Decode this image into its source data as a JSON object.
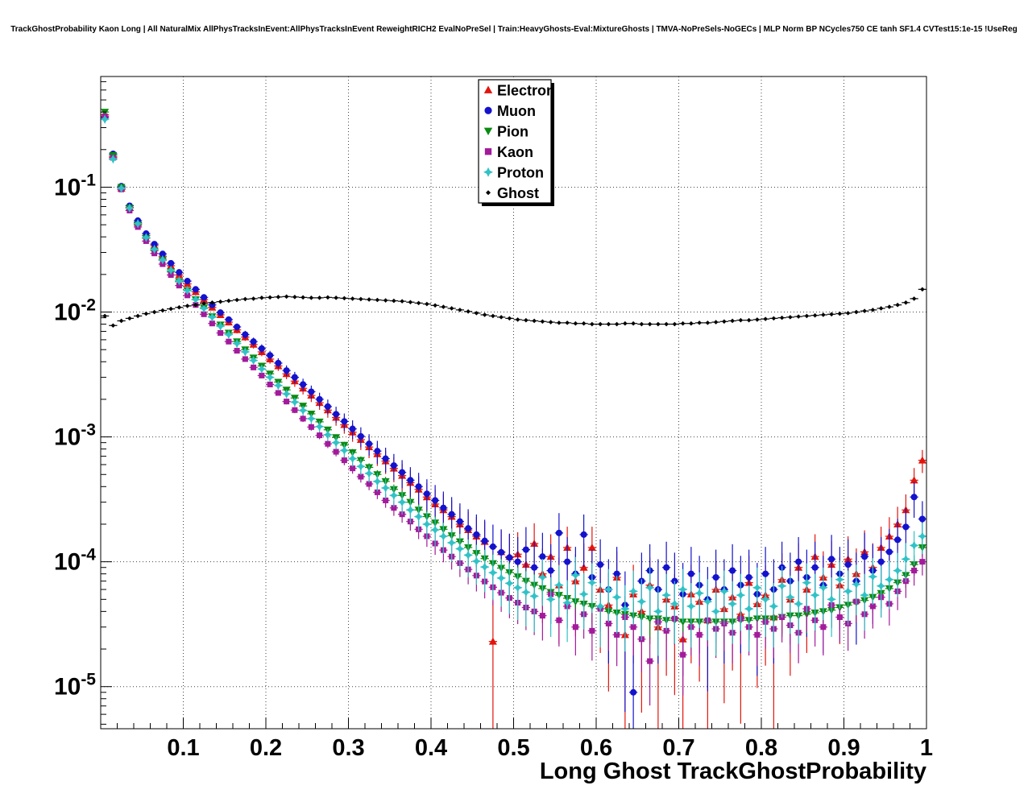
{
  "chart_data": {
    "type": "scatter",
    "title": "TrackGhostProbability Kaon Long | All NaturalMix AllPhysTracksInEvent:AllPhysTracksInEvent ReweightRICH2 EvalNoPreSel | Train:HeavyGhosts-Eval:MixtureGhosts | TMVA-NoPreSels-NoGECs | MLP Norm BP NCycles750 CE tanh SF1.4 CVTest15:1e-15 !UseReg",
    "xlabel": "Long Ghost TrackGhostProbability",
    "ylabel": "",
    "y_scale": "log",
    "grid": true,
    "x_range": [
      0,
      1
    ],
    "y_range": [
      4.6e-06,
      0.77
    ],
    "x_ticks": [
      0.1,
      0.2,
      0.3,
      0.4,
      0.5,
      0.6,
      0.7,
      0.8,
      0.9,
      1
    ],
    "x_tick_labels": [
      "0.1",
      "0.2",
      "0.3",
      "0.4",
      "0.5",
      "0.6",
      "0.7",
      "0.8",
      "0.9",
      "1"
    ],
    "y_tick_exponents": [
      -5,
      -4,
      -3,
      -2,
      -1
    ],
    "legend_position": "top-center",
    "bin_width": 0.01,
    "error_model": "poisson estimate: err = sqrt(y / stat_c)",
    "x": [
      0.005,
      0.015,
      0.025,
      0.035,
      0.045,
      0.055,
      0.065,
      0.075,
      0.085,
      0.095,
      0.105,
      0.115,
      0.125,
      0.135,
      0.145,
      0.155,
      0.165,
      0.175,
      0.185,
      0.195,
      0.205,
      0.215,
      0.225,
      0.235,
      0.245,
      0.255,
      0.265,
      0.275,
      0.285,
      0.295,
      0.305,
      0.315,
      0.325,
      0.335,
      0.345,
      0.355,
      0.365,
      0.375,
      0.385,
      0.395,
      0.405,
      0.415,
      0.425,
      0.435,
      0.445,
      0.455,
      0.465,
      0.475,
      0.485,
      0.495,
      0.505,
      0.515,
      0.525,
      0.535,
      0.545,
      0.555,
      0.565,
      0.575,
      0.585,
      0.595,
      0.605,
      0.615,
      0.625,
      0.635,
      0.645,
      0.655,
      0.665,
      0.675,
      0.685,
      0.695,
      0.705,
      0.715,
      0.725,
      0.735,
      0.745,
      0.755,
      0.765,
      0.775,
      0.785,
      0.795,
      0.805,
      0.815,
      0.825,
      0.835,
      0.845,
      0.855,
      0.865,
      0.875,
      0.885,
      0.895,
      0.905,
      0.915,
      0.925,
      0.935,
      0.945,
      0.955,
      0.965,
      0.975,
      0.985,
      0.995
    ],
    "series": [
      {
        "name": "Electron",
        "color": "#e3140c",
        "marker": "triangle-up",
        "marker_size": 5,
        "stat_c": 35000,
        "values": [
          0.38,
          0.175,
          0.098,
          0.069,
          0.052,
          0.041,
          0.034,
          0.028,
          0.0235,
          0.0198,
          0.0168,
          0.0145,
          0.0126,
          0.0109,
          0.0095,
          0.0083,
          0.0072,
          0.0063,
          0.0055,
          0.0048,
          0.0042,
          0.0037,
          0.0032,
          0.0028,
          0.00245,
          0.00215,
          0.00188,
          0.00164,
          0.00143,
          0.00125,
          0.00109,
          0.00095,
          0.00083,
          0.00073,
          0.00064,
          0.00056,
          0.00049,
          0.00043,
          0.00038,
          0.00033,
          0.00029,
          0.00026,
          0.00023,
          0.0002,
          0.00018,
          0.00016,
          0.000145,
          2.3e-05,
          0.00012,
          0.00011,
          0.000115,
          9.5e-05,
          0.00014,
          8e-05,
          0.00011,
          6.5e-05,
          0.00013,
          7e-05,
          9e-05,
          0.00013,
          6e-05,
          4.5e-05,
          7.5e-05,
          2.6e-05,
          5.5e-05,
          4e-05,
          6.5e-05,
          3e-05,
          5e-05,
          4.4e-05,
          2.4e-05,
          5.5e-05,
          4.8e-05,
          3.4e-05,
          6e-05,
          4.2e-05,
          5.2e-05,
          3.8e-05,
          6.8e-05,
          4.6e-05,
          5.4e-05,
          3.6e-05,
          7.2e-05,
          5e-05,
          9e-05,
          6e-05,
          0.00011,
          7.5e-05,
          9.5e-05,
          6.5e-05,
          0.000105,
          8e-05,
          0.00012,
          9e-05,
          0.00013,
          0.00016,
          0.0002,
          0.00026,
          0.00045,
          0.00065
        ]
      },
      {
        "name": "Muon",
        "color": "#1412cc",
        "marker": "circle",
        "marker_size": 4.6,
        "stat_c": 30000,
        "values": [
          0.36,
          0.185,
          0.102,
          0.071,
          0.054,
          0.0425,
          0.035,
          0.0292,
          0.0246,
          0.0208,
          0.0177,
          0.0152,
          0.0131,
          0.0114,
          0.0099,
          0.0087,
          0.0076,
          0.0066,
          0.0058,
          0.0051,
          0.0045,
          0.0039,
          0.0034,
          0.003,
          0.00263,
          0.0023,
          0.002,
          0.00175,
          0.00152,
          0.00133,
          0.00116,
          0.00101,
          0.00088,
          0.00077,
          0.00067,
          0.00059,
          0.00052,
          0.00045,
          0.0004,
          0.00035,
          0.00031,
          0.00027,
          0.00024,
          0.00021,
          0.000185,
          0.000165,
          0.000147,
          0.000132,
          0.000119,
          0.000108,
          0.0001,
          0.000125,
          9e-05,
          0.00011,
          8.5e-05,
          0.00017,
          0.0001,
          8e-05,
          0.000165,
          7.5e-05,
          9.5e-05,
          6e-05,
          8e-05,
          4.5e-05,
          9e-06,
          7e-05,
          8.5e-05,
          6e-05,
          9e-05,
          7e-05,
          5.5e-05,
          8e-05,
          6.5e-05,
          5e-05,
          7.5e-05,
          6e-05,
          8.5e-05,
          6.5e-05,
          7.5e-05,
          5.5e-05,
          8e-05,
          6e-05,
          9e-05,
          7e-05,
          0.0001,
          7.5e-05,
          9e-05,
          6.5e-05,
          0.000105,
          8e-05,
          9.5e-05,
          7e-05,
          0.00011,
          8.5e-05,
          0.0001,
          0.00012,
          0.00015,
          0.00019,
          0.00033,
          0.00022
        ]
      },
      {
        "name": "Pion",
        "color": "#0a8a10",
        "marker": "triangle-down",
        "marker_size": 5,
        "stat_c": 300000,
        "values": [
          0.4,
          0.18,
          0.1,
          0.068,
          0.05,
          0.039,
          0.031,
          0.026,
          0.021,
          0.0175,
          0.0148,
          0.0126,
          0.0108,
          0.0092,
          0.0079,
          0.0068,
          0.0058,
          0.005,
          0.0043,
          0.0037,
          0.0032,
          0.00275,
          0.00238,
          0.00205,
          0.00177,
          0.00153,
          0.00132,
          0.00114,
          0.00099,
          0.00086,
          0.00075,
          0.00065,
          0.00057,
          0.0005,
          0.00044,
          0.00038,
          0.00034,
          0.0003,
          0.00026,
          0.00023,
          0.000205,
          0.000182,
          0.000162,
          0.000145,
          0.00013,
          0.000117,
          0.000106,
          9.7e-05,
          8.9e-05,
          8.2e-05,
          7.6e-05,
          7e-05,
          6.5e-05,
          6.1e-05,
          5.7e-05,
          5.4e-05,
          5.1e-05,
          4.8e-05,
          4.6e-05,
          4.4e-05,
          4.2e-05,
          4e-05,
          3.9e-05,
          3.8e-05,
          3.7e-05,
          3.6e-05,
          3.5e-05,
          3.5e-05,
          3.4e-05,
          3.4e-05,
          3.3e-05,
          3.3e-05,
          3.3e-05,
          3.3e-05,
          3.3e-05,
          3.3e-05,
          3.3e-05,
          3.4e-05,
          3.4e-05,
          3.5e-05,
          3.5e-05,
          3.5e-05,
          3.6e-05,
          3.7e-05,
          3.7e-05,
          3.8e-05,
          3.9e-05,
          4e-05,
          4.1e-05,
          4.3e-05,
          4.5e-05,
          4.7e-05,
          4.9e-05,
          5.2e-05,
          5.6e-05,
          6.1e-05,
          6.8e-05,
          7.8e-05,
          9.5e-05,
          0.00013
        ]
      },
      {
        "name": "Kaon",
        "color": "#a31a9b",
        "marker": "square",
        "marker_size": 4.4,
        "stat_c": 200000,
        "values": [
          0.37,
          0.172,
          0.096,
          0.065,
          0.048,
          0.037,
          0.0295,
          0.0242,
          0.0198,
          0.0163,
          0.0136,
          0.0114,
          0.0096,
          0.0081,
          0.0068,
          0.0058,
          0.0049,
          0.0042,
          0.0036,
          0.0031,
          0.00263,
          0.00225,
          0.00192,
          0.00164,
          0.0014,
          0.0012,
          0.00103,
          0.00088,
          0.00076,
          0.00065,
          0.00056,
          0.00048,
          0.00042,
          0.00036,
          0.00031,
          0.00027,
          0.00024,
          0.00021,
          0.000182,
          0.00016,
          0.00014,
          0.000124,
          0.00011,
          9.75e-05,
          8.68e-05,
          7.75e-05,
          6.95e-05,
          6.25e-05,
          5.65e-05,
          5.13e-05,
          4.7e-05,
          4.3e-05,
          4e-05,
          3.7e-05,
          5.5e-05,
          3.4e-05,
          4.4e-05,
          3e-05,
          3.8e-05,
          2.8e-05,
          4.2e-05,
          3.2e-05,
          2.6e-05,
          3.6e-05,
          3e-05,
          2.4e-05,
          1.6e-05,
          3.3e-05,
          2.8e-05,
          3.5e-05,
          1.8e-05,
          3e-05,
          2.6e-05,
          3.4e-05,
          2.9e-05,
          3.2e-05,
          2.7e-05,
          3.5e-05,
          3e-05,
          2.6e-05,
          3.3e-05,
          2.9e-05,
          3.6e-05,
          3.1e-05,
          2.7e-05,
          4.2e-05,
          3.4e-05,
          3e-05,
          4.5e-05,
          3.6e-05,
          3.2e-05,
          4.8e-05,
          3.8e-05,
          4.4e-05,
          5.2e-05,
          4.6e-05,
          5.8e-05,
          7e-05,
          8.5e-05,
          0.0001
        ]
      },
      {
        "name": "Proton",
        "color": "#30c2c6",
        "marker": "star4",
        "marker_size": 5,
        "stat_c": 80000,
        "values": [
          0.35,
          0.168,
          0.098,
          0.068,
          0.051,
          0.0395,
          0.0318,
          0.0262,
          0.0216,
          0.0178,
          0.0149,
          0.0126,
          0.0107,
          0.0091,
          0.0077,
          0.0066,
          0.0056,
          0.0048,
          0.0041,
          0.0035,
          0.003,
          0.00258,
          0.00221,
          0.0019,
          0.00163,
          0.0014,
          0.00121,
          0.00104,
          0.0009,
          0.00078,
          0.00067,
          0.00058,
          0.00051,
          0.00044,
          0.00039,
          0.00034,
          0.0003,
          0.00026,
          0.00023,
          0.0002,
          0.00018,
          0.00016,
          0.000142,
          0.000127,
          0.000113,
          0.000101,
          9.08e-05,
          8.18e-05,
          7.4e-05,
          6.72e-05,
          6.2e-05,
          5.7e-05,
          5.3e-05,
          7.5e-05,
          5e-05,
          6.5e-05,
          4.7e-05,
          7.8e-05,
          5.5e-05,
          6.8e-05,
          4.4e-05,
          6e-05,
          5.2e-05,
          4.2e-05,
          5.8e-05,
          4.8e-05,
          6.2e-05,
          4e-05,
          5.4e-05,
          4.6e-05,
          6e-05,
          4.4e-05,
          5.6e-05,
          4.8e-05,
          4e-05,
          5.8e-05,
          4.6e-05,
          5.4e-05,
          4.2e-05,
          6.2e-05,
          5e-05,
          4.4e-05,
          6.4e-05,
          5.2e-05,
          4.6e-05,
          6.8e-05,
          5.4e-05,
          6.2e-05,
          5e-05,
          7.2e-05,
          5.8e-05,
          6.6e-05,
          5.4e-05,
          7.6e-05,
          6.4e-05,
          7.2e-05,
          8.5e-05,
          0.000105,
          0.000135,
          0.00016
        ]
      },
      {
        "name": "Ghost",
        "color": "#000000",
        "marker": "small-diamond",
        "marker_size": 2.8,
        "stat_c": 300000,
        "values": [
          0.0093,
          0.0078,
          0.0085,
          0.0089,
          0.0093,
          0.0097,
          0.01,
          0.0103,
          0.0106,
          0.0109,
          0.0112,
          0.0114,
          0.0117,
          0.0119,
          0.0121,
          0.0123,
          0.0125,
          0.0127,
          0.0128,
          0.013,
          0.0131,
          0.0132,
          0.0133,
          0.0132,
          0.0131,
          0.013,
          0.013,
          0.0131,
          0.013,
          0.0129,
          0.0128,
          0.0127,
          0.0126,
          0.0125,
          0.0124,
          0.0123,
          0.0122,
          0.012,
          0.0118,
          0.0116,
          0.0113,
          0.011,
          0.0107,
          0.0104,
          0.0101,
          0.0098,
          0.0095,
          0.0093,
          0.0091,
          0.0089,
          0.0087,
          0.0086,
          0.0085,
          0.0084,
          0.0083,
          0.0082,
          0.0082,
          0.0081,
          0.0081,
          0.008,
          0.008,
          0.008,
          0.008,
          0.0081,
          0.0081,
          0.008,
          0.008,
          0.008,
          0.008,
          0.008,
          0.0081,
          0.0081,
          0.0082,
          0.0082,
          0.0083,
          0.0084,
          0.0085,
          0.0086,
          0.0086,
          0.0087,
          0.0088,
          0.0089,
          0.009,
          0.0091,
          0.0092,
          0.0093,
          0.0094,
          0.0095,
          0.0096,
          0.0097,
          0.0098,
          0.01,
          0.0102,
          0.0104,
          0.0107,
          0.011,
          0.0114,
          0.0119,
          0.0128,
          0.0152
        ]
      }
    ]
  }
}
